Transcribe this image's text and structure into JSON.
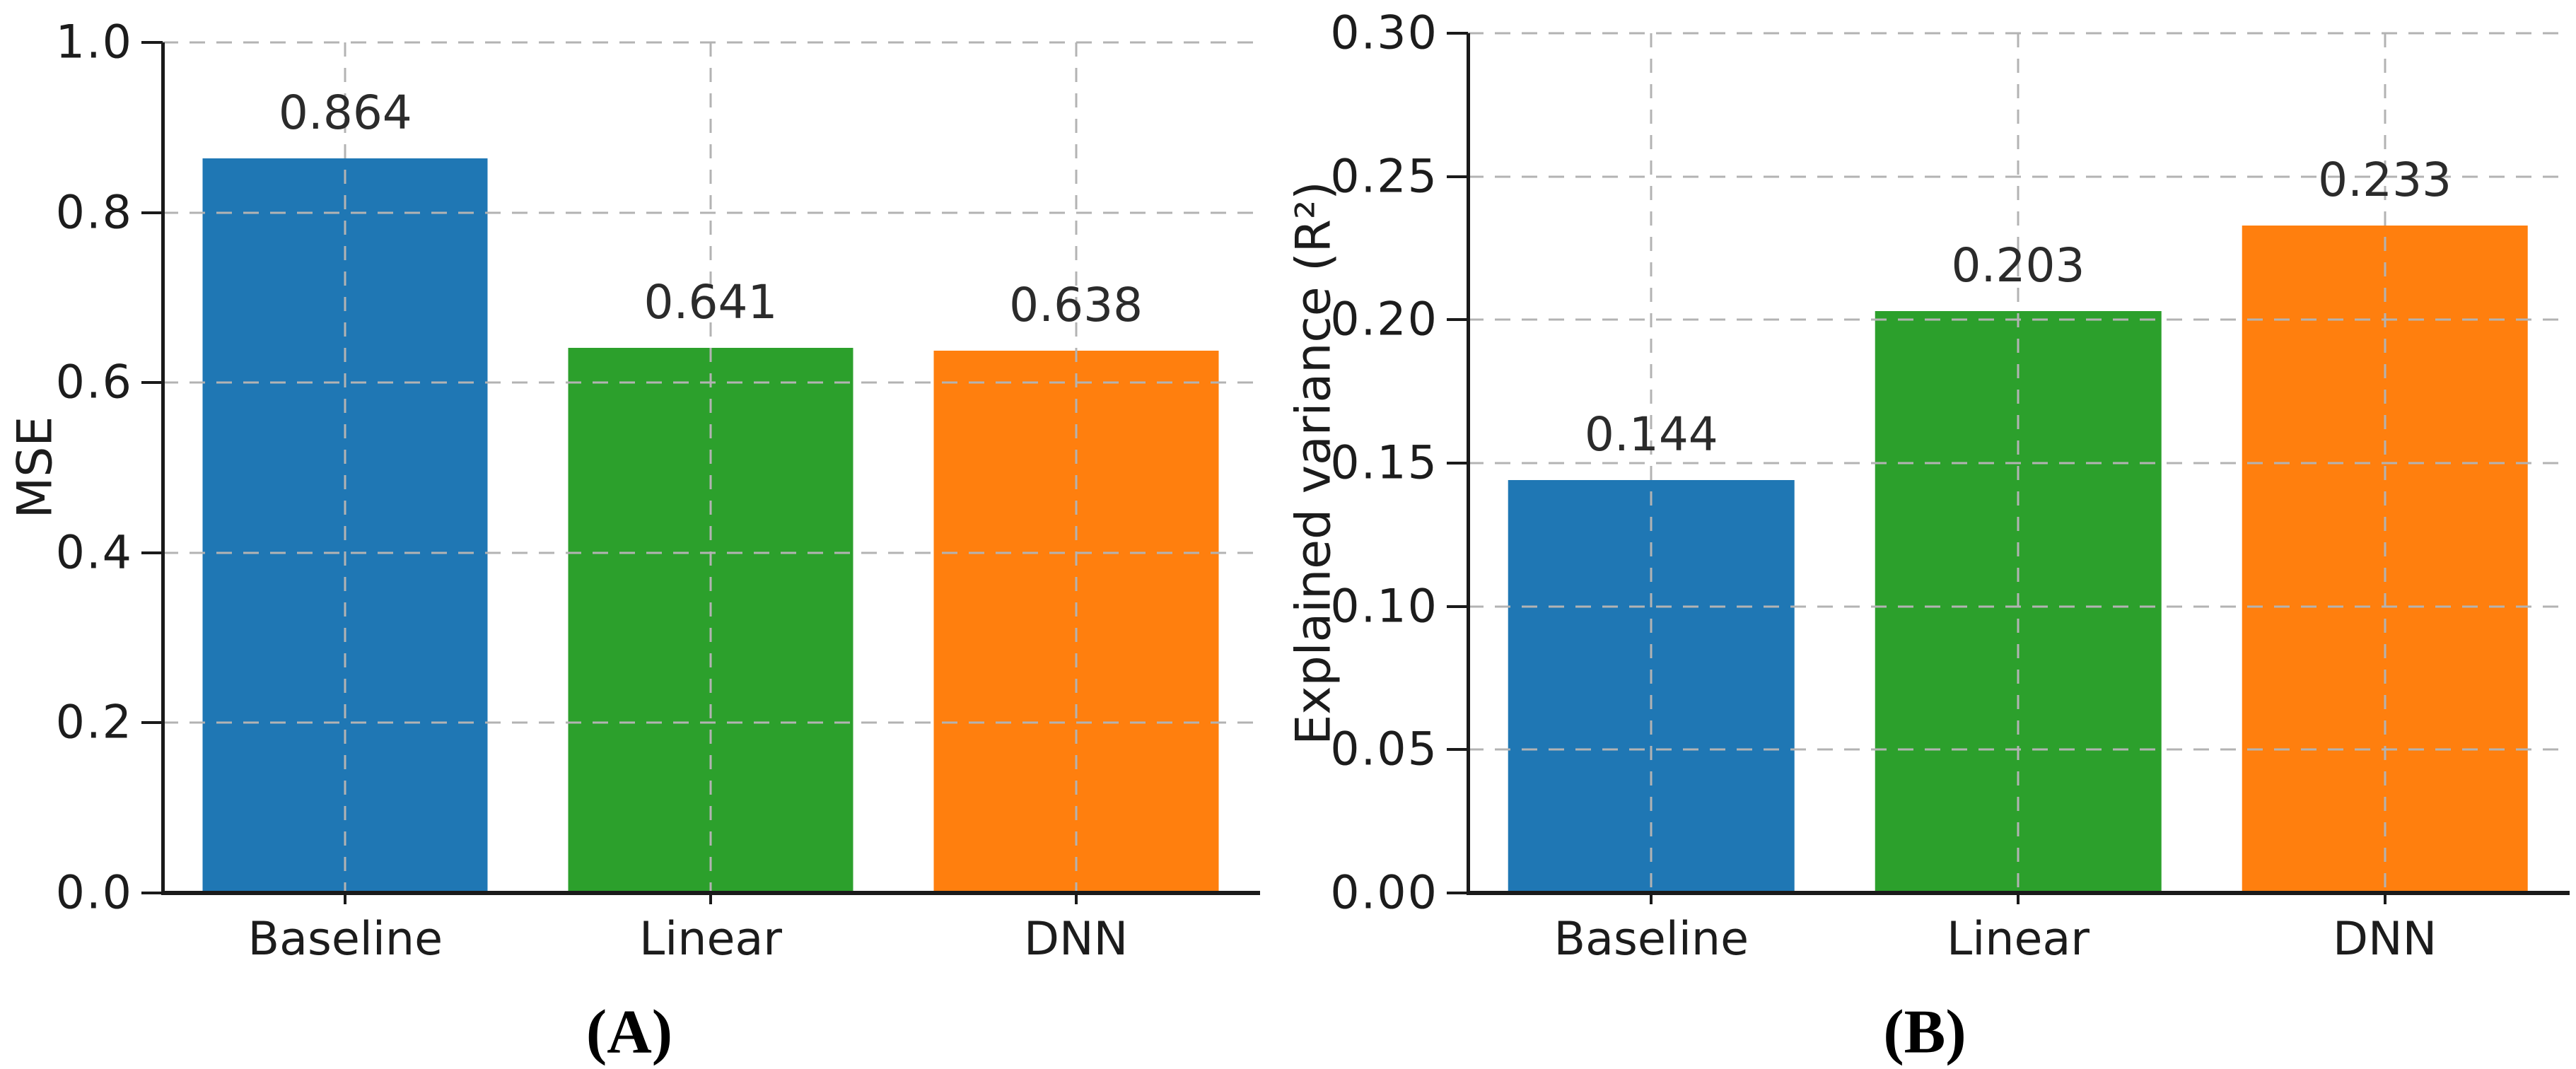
{
  "styles": {
    "background": "#ffffff",
    "grid_color": "#b3b3b3",
    "spine_color": "#1a1a1a",
    "text_color": "#1c1c1c",
    "bar_colors": [
      "#1f77b4",
      "#2ca02c",
      "#ff7f0e"
    ]
  },
  "chart_data": [
    {
      "type": "bar",
      "panel": "A",
      "caption": "(A)",
      "title": "",
      "xlabel": "",
      "ylabel": "MSE",
      "categories": [
        "Baseline",
        "Linear",
        "DNN"
      ],
      "values": [
        0.864,
        0.641,
        0.638
      ],
      "bar_labels": [
        "0.864",
        "0.641",
        "0.638"
      ],
      "bar_colors": [
        "#1f77b4",
        "#2ca02c",
        "#ff7f0e"
      ],
      "ylim": [
        0.0,
        1.0
      ],
      "yticks": [
        0.0,
        0.2,
        0.4,
        0.6,
        0.8,
        1.0
      ],
      "ytick_labels": [
        "0.0",
        "0.2",
        "0.4",
        "0.6",
        "0.8",
        "1.0"
      ],
      "grid": "dashed horizontal and vertical",
      "legend": "none"
    },
    {
      "type": "bar",
      "panel": "B",
      "caption": "(B)",
      "title": "",
      "xlabel": "",
      "ylabel": "Explained variance (R²)",
      "categories": [
        "Baseline",
        "Linear",
        "DNN"
      ],
      "values": [
        0.144,
        0.203,
        0.233
      ],
      "bar_labels": [
        "0.144",
        "0.203",
        "0.233"
      ],
      "bar_colors": [
        "#1f77b4",
        "#2ca02c",
        "#ff7f0e"
      ],
      "ylim": [
        0.0,
        0.3
      ],
      "yticks": [
        0.0,
        0.05,
        0.1,
        0.15,
        0.2,
        0.25,
        0.3
      ],
      "ytick_labels": [
        "0.00",
        "0.05",
        "0.10",
        "0.15",
        "0.20",
        "0.25",
        "0.30"
      ],
      "grid": "dashed horizontal and vertical",
      "legend": "none"
    }
  ]
}
